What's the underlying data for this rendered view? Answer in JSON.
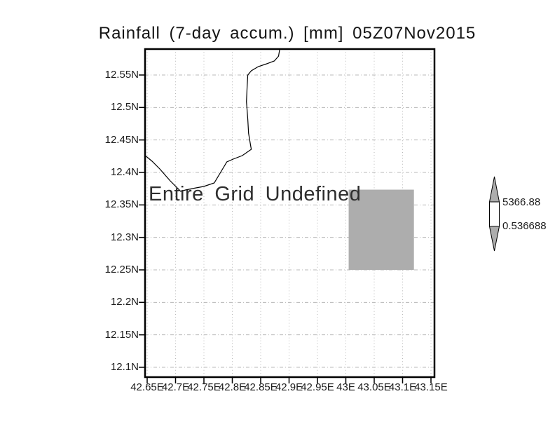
{
  "title": "Rainfall (7-day accum.) [mm] 05Z07Nov2015",
  "annotation": "Entire Grid Undefined",
  "colors": {
    "shade_gray": "#adadad",
    "grid_gray": "#b8b8b8",
    "line_black": "#000000"
  },
  "colorbar": {
    "max_label": "5366.88",
    "min_label": "0.536688",
    "arrow_color": "#adadad",
    "box_color": "#ffffff"
  },
  "chart_data": {
    "type": "heatmap",
    "title": "Rainfall (7-day accum.) [mm] 05Z07Nov2015",
    "annotation": "Entire Grid Undefined",
    "grid": true,
    "x_axis": {
      "tick_labels": [
        "42.65E",
        "42.7E",
        "42.75E",
        "42.8E",
        "42.85E",
        "42.9E",
        "42.95E",
        "43E",
        "43.05E",
        "43.1E",
        "43.15E"
      ],
      "tick_values": [
        42.65,
        42.7,
        42.75,
        42.8,
        42.85,
        42.9,
        42.95,
        43.0,
        43.05,
        43.1,
        43.15
      ]
    },
    "y_axis": {
      "tick_labels": [
        "12.55N",
        "12.5N",
        "12.45N",
        "12.4N",
        "12.35N",
        "12.3N",
        "12.25N",
        "12.2N",
        "12.15N",
        "12.1N"
      ],
      "tick_values": [
        12.55,
        12.5,
        12.45,
        12.4,
        12.35,
        12.3,
        12.25,
        12.2,
        12.15,
        12.1
      ]
    },
    "colorbar": {
      "max_value": 5366.88,
      "min_value": 0.536688,
      "max_label": "5366.88",
      "min_label": "0.536688"
    },
    "undefined_region": {
      "lon_min": 43.005,
      "lon_max": 43.12,
      "lat_min": 12.25,
      "lat_max": 12.3735
    },
    "coastline": [
      [
        42.884,
        12.592
      ],
      [
        42.8815,
        12.579
      ],
      [
        42.874,
        12.5716
      ],
      [
        42.8606,
        12.5673
      ],
      [
        42.8458,
        12.563
      ],
      [
        42.8335,
        12.5565
      ],
      [
        42.8273,
        12.55
      ],
      [
        42.826,
        12.5306
      ],
      [
        42.8249,
        12.509
      ],
      [
        42.8273,
        12.482
      ],
      [
        42.8286,
        12.4604
      ],
      [
        42.8323,
        12.441
      ],
      [
        42.8335,
        12.4356
      ],
      [
        42.8175,
        12.4259
      ],
      [
        42.8015,
        12.4205
      ],
      [
        42.7904,
        12.4162
      ],
      [
        42.7793,
        12.4
      ],
      [
        42.7682,
        12.3838
      ],
      [
        42.7498,
        12.3784
      ],
      [
        42.7362,
        12.3763
      ],
      [
        42.7177,
        12.373
      ],
      [
        42.7091,
        12.3709
      ],
      [
        42.6906,
        12.3871
      ],
      [
        42.6722,
        12.4054
      ],
      [
        42.6586,
        12.4173
      ],
      [
        42.648,
        12.4249
      ]
    ]
  }
}
